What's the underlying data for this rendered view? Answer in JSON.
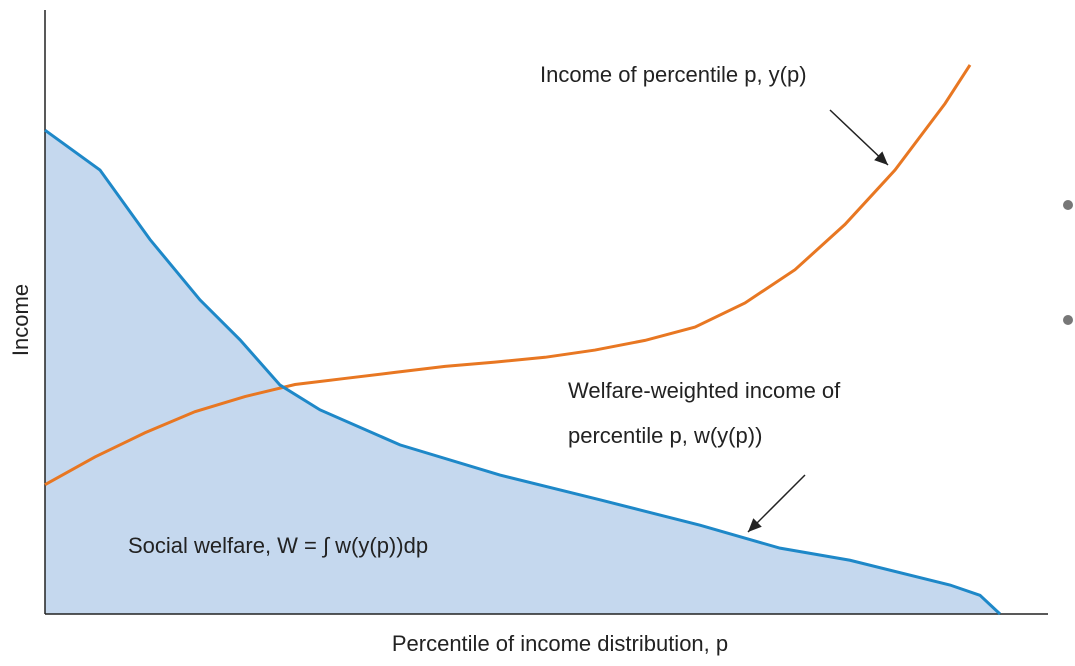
{
  "chart_data": {
    "type": "line",
    "xlabel": "Percentile of income distribution, p",
    "ylabel": "Income",
    "xlim": [
      0,
      100
    ],
    "ylim": [
      0,
      100
    ],
    "series": [
      {
        "name": "Income of percentile p, y(p)",
        "color": "#e87722",
        "area": false,
        "x": [
          0,
          5,
          10,
          15,
          20,
          25,
          30,
          35,
          40,
          45,
          50,
          55,
          60,
          65,
          70,
          75,
          80,
          85,
          90,
          92.5
        ],
        "values": [
          21.4,
          26,
          30,
          33.5,
          36,
          38,
          39,
          40,
          41,
          41.7,
          42.5,
          43.7,
          45.3,
          47.5,
          51.5,
          57,
          64.5,
          73.5,
          84.5,
          90.9
        ]
      },
      {
        "name": "Welfare-weighted income of percentile p, w(y(p))",
        "color": "#1e88c8",
        "area": true,
        "fill": "#c5d8ee",
        "x": [
          0,
          5.5,
          10.5,
          15.5,
          19.5,
          23.5,
          27.5,
          35.5,
          45.5,
          55.5,
          65.5,
          73.5,
          80.5,
          90.5,
          93.5,
          95.5
        ],
        "values": [
          80.1,
          73.5,
          62,
          52,
          45.4,
          37.9,
          33.8,
          28,
          23,
          18.9,
          14.7,
          10.9,
          8.9,
          4.8,
          3.1,
          0
        ]
      }
    ],
    "annotations": [
      "Welfare-weighted income of",
      "percentile p, w(y(p))",
      "Social welfare, W = ∫ w(y(p))dp"
    ]
  }
}
